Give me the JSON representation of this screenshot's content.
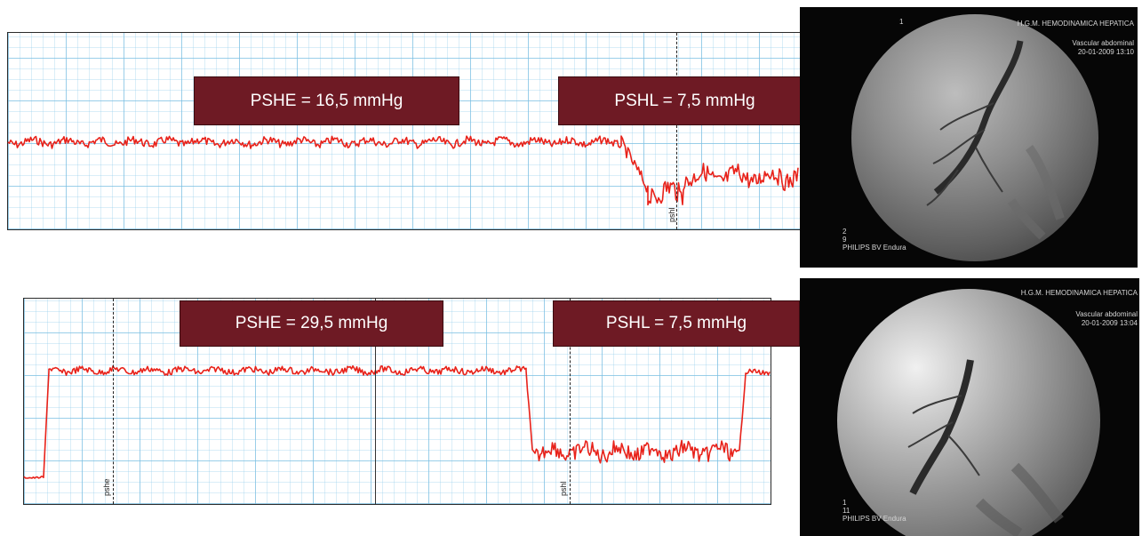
{
  "panel_top": {
    "pressure_boxes": {
      "pshe": "PSHE = 16,5 mmHg",
      "pshl": "PSHL = 7,5 mmHg"
    },
    "marker_labels": {
      "pshl": "pshl"
    },
    "fluoroscopy": {
      "corner_number": "1",
      "header": "H.G.M. HEMODINAMICA HEPATICA",
      "study": "Vascular abdominal",
      "datetime": "20-01-2009  13:10",
      "bottom_line1": "2",
      "bottom_line2": "9",
      "device": "PHILIPS BV Endura"
    }
  },
  "panel_bottom": {
    "pressure_boxes": {
      "pshe": "PSHE = 29,5 mmHg",
      "pshl": "PSHL = 7,5 mmHg"
    },
    "marker_labels": {
      "pshe": "pshe",
      "pshl": "pshl"
    },
    "fluoroscopy": {
      "header": "H.G.M. HEMODINAMICA HEPATICA",
      "study": "Vascular abdominal",
      "datetime": "20-01-2009  13:04",
      "bottom_line1": "1",
      "bottom_line2": "11",
      "device": "PHILIPS BV Endura"
    }
  },
  "colors": {
    "trace": "#e8221a",
    "label_box": "#6e1a24",
    "grid": "#7ec2e6"
  }
}
